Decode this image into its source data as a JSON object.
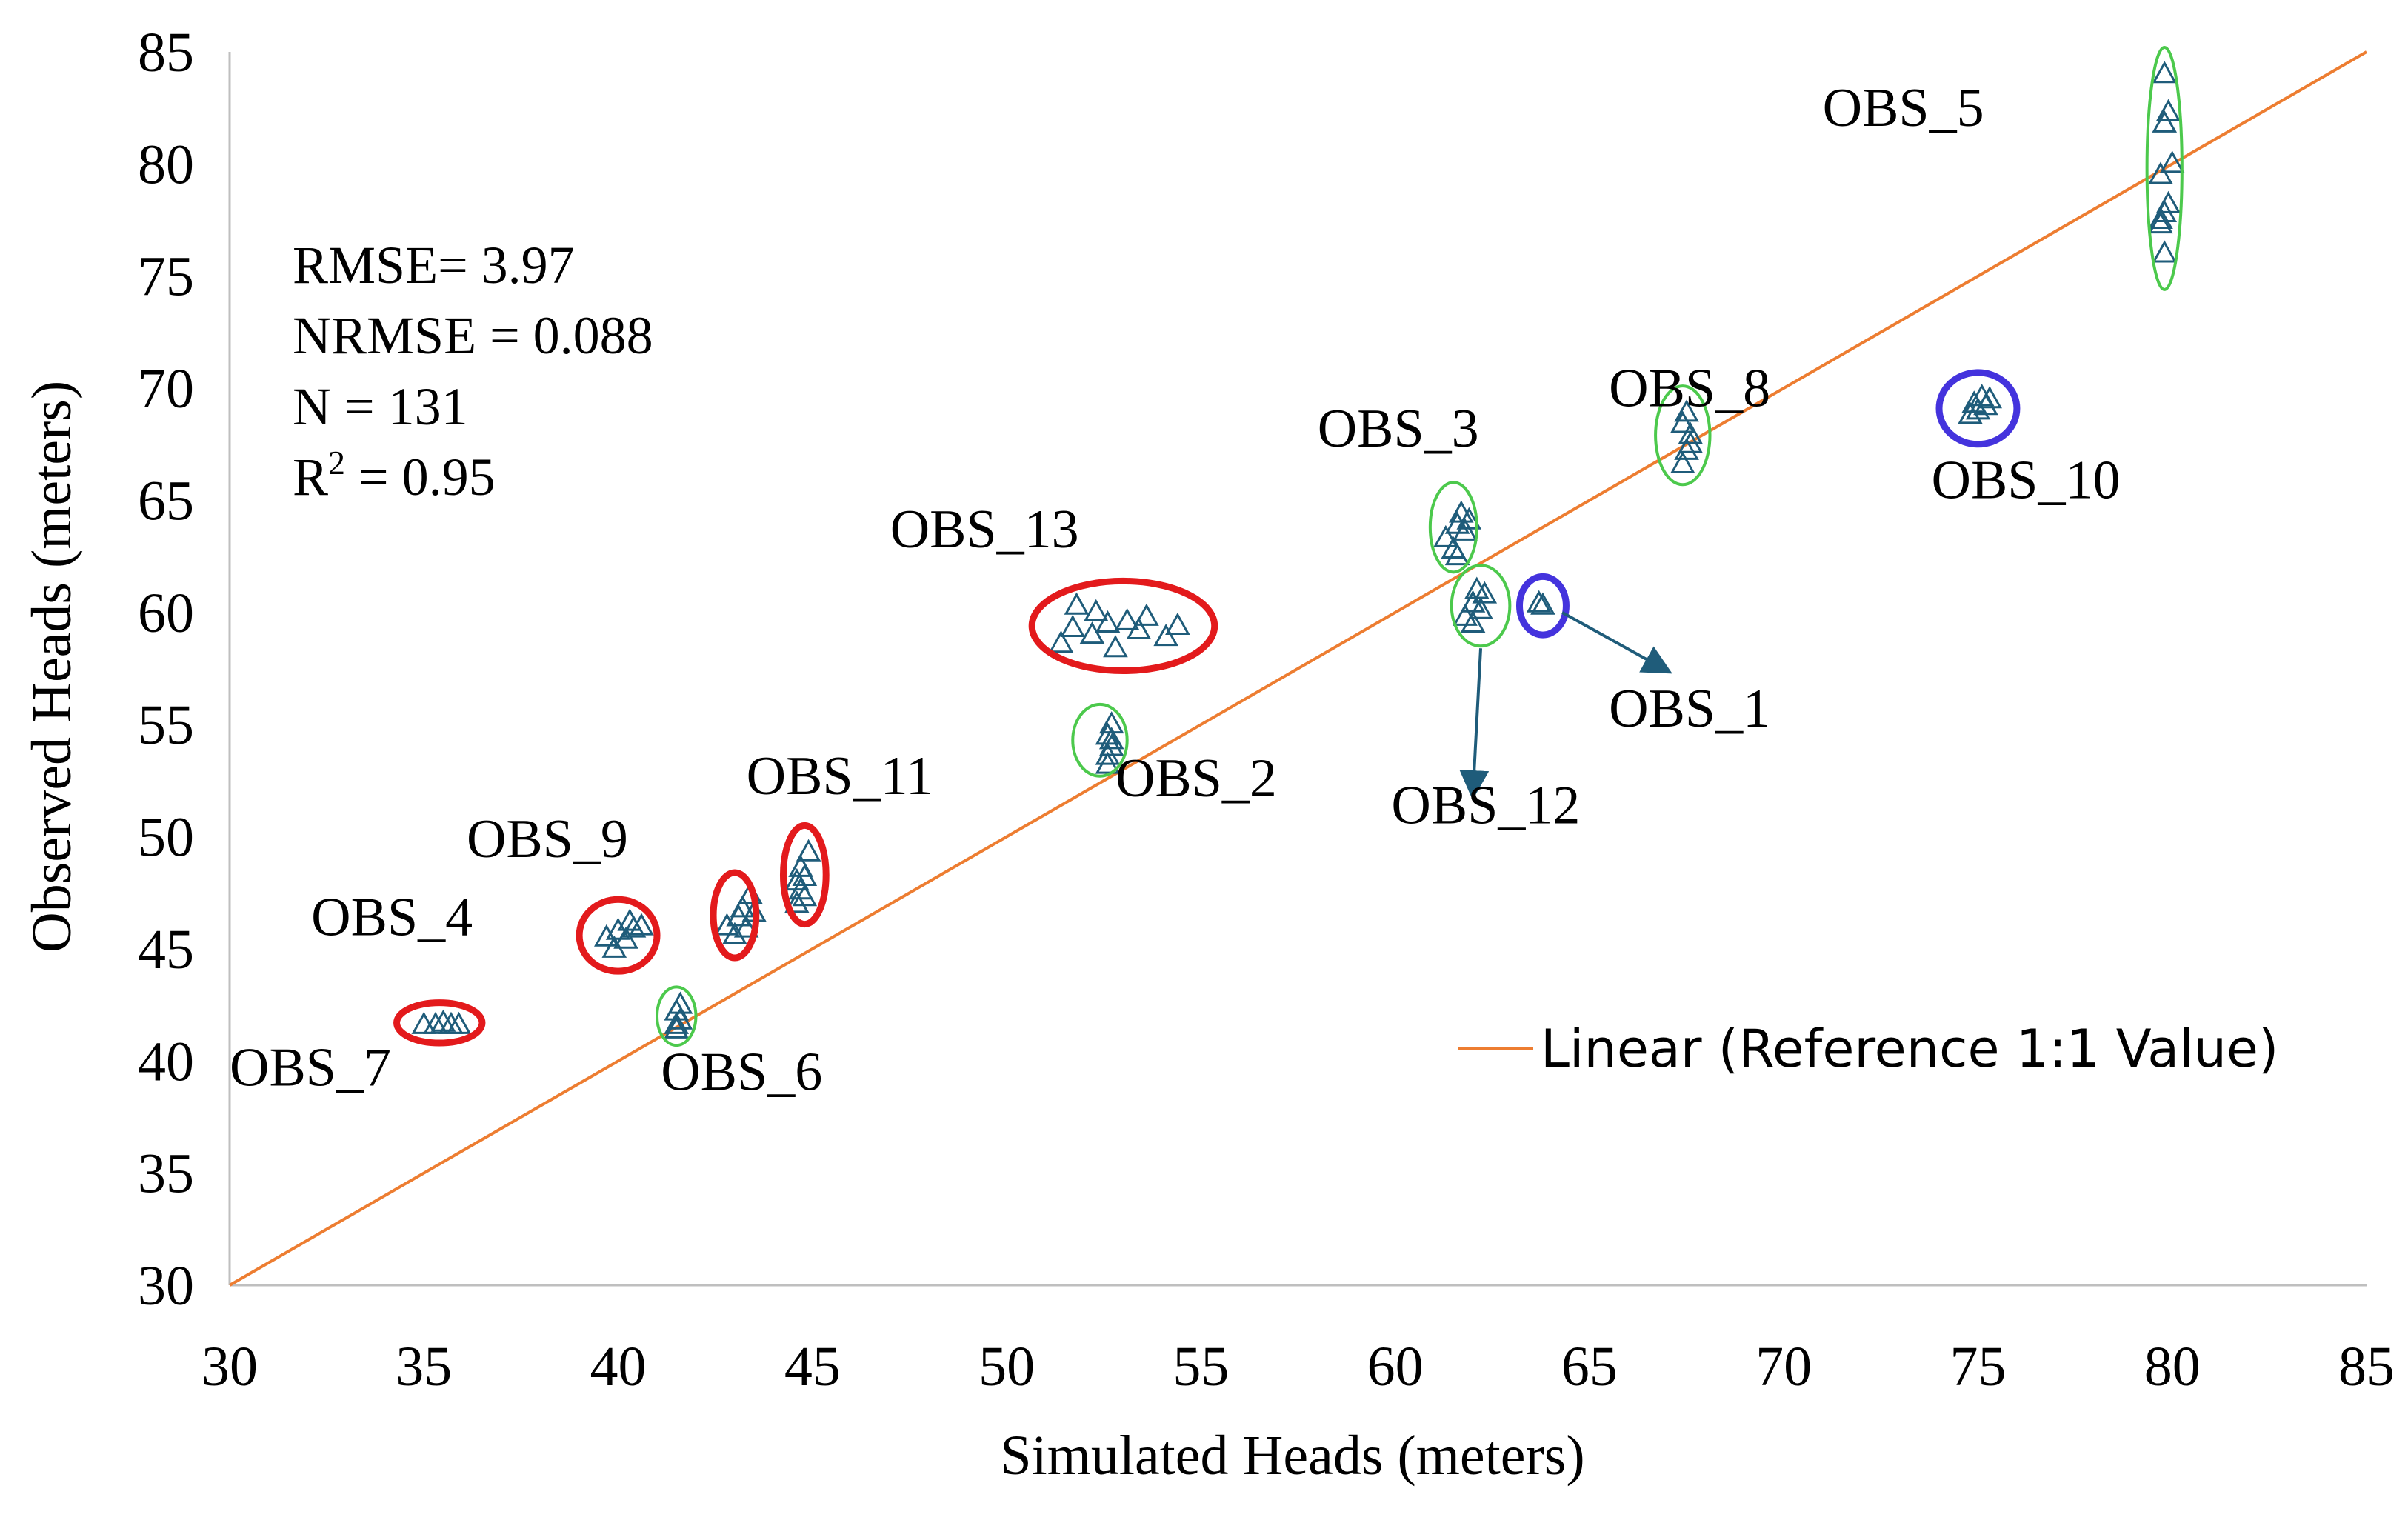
{
  "chart_data": {
    "type": "scatter",
    "xlabel": "Simulated Heads (meters)",
    "ylabel": "Observed Heads  (meters)",
    "xlim": [
      30,
      85
    ],
    "ylim": [
      30,
      85
    ],
    "xticks": [
      "30",
      "35",
      "40",
      "45",
      "50",
      "55",
      "60",
      "65",
      "70",
      "75",
      "80",
      "85"
    ],
    "yticks": [
      "30",
      "35",
      "40",
      "45",
      "50",
      "55",
      "60",
      "65",
      "70",
      "75",
      "80",
      "85"
    ],
    "grid": false,
    "legend": {
      "placement": "bottom-right",
      "label": "Linear (Reference 1:1 Value)"
    },
    "stats": {
      "rmse": "RMSE= 3.97",
      "nrmse": "NRMSE = 0.088",
      "n": "N = 131",
      "r2_prefix": "R",
      "r2_sup": "2",
      "r2_suffix": " = 0.95"
    },
    "reference_line": {
      "x": [
        30,
        85
      ],
      "y": [
        30,
        85
      ],
      "color": "#ed7d31"
    },
    "colors": {
      "marker": "#1f5c7a",
      "good_fit": "#4cc94c",
      "overestimated": "#e31a1c",
      "underestimated": "#4433dd",
      "reference": "#ed7d31"
    },
    "groups": [
      {
        "name": "OBS_7",
        "ring": "red",
        "points": [
          [
            35.0,
            41.6
          ],
          [
            35.3,
            41.6
          ],
          [
            35.5,
            41.7
          ],
          [
            35.7,
            41.6
          ],
          [
            35.9,
            41.6
          ]
        ],
        "ellipse": {
          "cx": 35.4,
          "cy": 41.7,
          "rx": 1.1,
          "ry": 0.9
        }
      },
      {
        "name": "OBS_4",
        "ring": "red",
        "points": [
          [
            39.7,
            45.5
          ],
          [
            39.9,
            45.0
          ],
          [
            40.0,
            45.8
          ],
          [
            40.2,
            45.4
          ],
          [
            40.4,
            45.9
          ],
          [
            40.6,
            46.0
          ],
          [
            40.3,
            46.2
          ]
        ],
        "ellipse": {
          "cx": 40.0,
          "cy": 45.6,
          "rx": 1.0,
          "ry": 1.6
        }
      },
      {
        "name": "OBS_9",
        "ring": "red",
        "points": [
          [
            42.8,
            46.0
          ],
          [
            43.0,
            45.6
          ],
          [
            43.2,
            46.8
          ],
          [
            43.4,
            47.4
          ],
          [
            43.1,
            46.4
          ],
          [
            43.3,
            45.9
          ],
          [
            43.5,
            46.6
          ]
        ],
        "ellipse": {
          "cx": 43.0,
          "cy": 46.5,
          "rx": 0.55,
          "ry": 1.9
        }
      },
      {
        "name": "OBS_11",
        "ring": "red",
        "points": [
          [
            44.6,
            47.0
          ],
          [
            44.7,
            47.6
          ],
          [
            44.8,
            48.2
          ],
          [
            44.7,
            48.6
          ],
          [
            44.9,
            49.3
          ],
          [
            44.8,
            47.3
          ],
          [
            44.6,
            48.0
          ]
        ],
        "ellipse": {
          "cx": 44.8,
          "cy": 48.3,
          "rx": 0.55,
          "ry": 2.2
        }
      },
      {
        "name": "OBS_6",
        "ring": "green",
        "points": [
          [
            41.5,
            41.4
          ],
          [
            41.6,
            41.8
          ],
          [
            41.5,
            42.2
          ],
          [
            41.6,
            42.5
          ],
          [
            41.5,
            41.6
          ]
        ],
        "ellipse": {
          "cx": 41.5,
          "cy": 42.0,
          "rx": 0.5,
          "ry": 1.3
        }
      },
      {
        "name": "OBS_13",
        "ring": "red",
        "points": [
          [
            51.4,
            58.6
          ],
          [
            51.7,
            59.3
          ],
          [
            51.8,
            60.3
          ],
          [
            52.2,
            59.0
          ],
          [
            52.3,
            60.0
          ],
          [
            52.6,
            59.5
          ],
          [
            52.8,
            58.4
          ],
          [
            53.1,
            59.6
          ],
          [
            53.4,
            59.2
          ],
          [
            53.6,
            59.8
          ],
          [
            54.1,
            58.9
          ],
          [
            54.4,
            59.4
          ]
        ],
        "ellipse": {
          "cx": 53.0,
          "cy": 59.4,
          "rx": 2.35,
          "ry": 2.0
        }
      },
      {
        "name": "OBS_2",
        "ring": "green",
        "points": [
          [
            52.6,
            53.6
          ],
          [
            52.7,
            54.0
          ],
          [
            52.6,
            54.5
          ],
          [
            52.7,
            55.0
          ],
          [
            52.6,
            53.2
          ],
          [
            52.7,
            54.3
          ]
        ],
        "ellipse": {
          "cx": 52.4,
          "cy": 54.3,
          "rx": 0.7,
          "ry": 1.6
        }
      },
      {
        "name": "OBS_3",
        "ring": "green",
        "points": [
          [
            61.3,
            63.3
          ],
          [
            61.5,
            62.8
          ],
          [
            61.6,
            63.9
          ],
          [
            61.7,
            64.4
          ],
          [
            61.8,
            63.6
          ],
          [
            61.9,
            64.1
          ],
          [
            61.6,
            62.5
          ]
        ],
        "ellipse": {
          "cx": 61.5,
          "cy": 63.8,
          "rx": 0.6,
          "ry": 2.0
        }
      },
      {
        "name": "OBS_12",
        "ring": "green",
        "points": [
          [
            61.8,
            59.8
          ],
          [
            62.0,
            60.4
          ],
          [
            62.1,
            61.0
          ],
          [
            62.3,
            60.8
          ],
          [
            62.0,
            59.5
          ],
          [
            62.2,
            60.1
          ]
        ],
        "ellipse": {
          "cx": 62.2,
          "cy": 60.3,
          "rx": 0.75,
          "ry": 1.8
        }
      },
      {
        "name": "OBS_1",
        "ring": "blue",
        "points": [
          [
            63.7,
            60.4
          ],
          [
            63.8,
            60.3
          ]
        ],
        "ellipse": {
          "cx": 63.8,
          "cy": 60.3,
          "rx": 0.6,
          "ry": 1.3
        }
      },
      {
        "name": "OBS_8",
        "ring": "green",
        "points": [
          [
            67.4,
            66.6
          ],
          [
            67.5,
            67.2
          ],
          [
            67.6,
            67.9
          ],
          [
            67.4,
            68.4
          ],
          [
            67.5,
            68.9
          ],
          [
            67.6,
            67.5
          ]
        ],
        "ellipse": {
          "cx": 67.4,
          "cy": 67.9,
          "rx": 0.7,
          "ry": 2.2
        }
      },
      {
        "name": "OBS_10",
        "ring": "blue",
        "points": [
          [
            74.8,
            68.8
          ],
          [
            74.9,
            69.3
          ],
          [
            75.0,
            69.0
          ],
          [
            75.1,
            69.6
          ],
          [
            75.2,
            69.2
          ],
          [
            75.3,
            69.5
          ]
        ],
        "ellipse": {
          "cx": 75.0,
          "cy": 69.1,
          "rx": 1.0,
          "ry": 1.6
        }
      },
      {
        "name": "OBS_5",
        "ring": "green",
        "points": [
          [
            79.8,
            76.0
          ],
          [
            79.7,
            77.3
          ],
          [
            79.8,
            77.8
          ],
          [
            79.9,
            78.2
          ],
          [
            79.7,
            79.5
          ],
          [
            80.0,
            80.0
          ],
          [
            79.8,
            81.8
          ],
          [
            79.9,
            82.3
          ],
          [
            79.8,
            84.0
          ],
          [
            79.7,
            77.5
          ]
        ],
        "ellipse": {
          "cx": 79.8,
          "cy": 79.8,
          "rx": 0.45,
          "ry": 5.4
        }
      }
    ],
    "labels": [
      {
        "group": "OBS_7",
        "text": "OBS_7",
        "x": 30.0,
        "y": 38.9,
        "anchor": "start"
      },
      {
        "group": "OBS_4",
        "text": "OBS_4",
        "x": 32.1,
        "y": 45.6,
        "anchor": "start"
      },
      {
        "group": "OBS_9",
        "text": "OBS_9",
        "x": 36.1,
        "y": 49.1,
        "anchor": "start"
      },
      {
        "group": "OBS_11",
        "text": "OBS_11",
        "x": 43.3,
        "y": 51.9,
        "anchor": "start"
      },
      {
        "group": "OBS_6",
        "text": "OBS_6",
        "x": 41.1,
        "y": 38.7,
        "anchor": "start"
      },
      {
        "group": "OBS_13",
        "text": "OBS_13",
        "x": 47.0,
        "y": 62.9,
        "anchor": "start"
      },
      {
        "group": "OBS_2",
        "text": "OBS_2",
        "x": 52.8,
        "y": 51.8,
        "anchor": "start"
      },
      {
        "group": "OBS_3",
        "text": "OBS_3",
        "x": 58.0,
        "y": 67.4,
        "anchor": "start"
      },
      {
        "group": "OBS_12",
        "text": "OBS_12",
        "x": 59.9,
        "y": 50.6,
        "anchor": "start"
      },
      {
        "group": "OBS_1",
        "text": "OBS_1",
        "x": 65.5,
        "y": 54.9,
        "anchor": "start"
      },
      {
        "group": "OBS_8",
        "text": "OBS_8",
        "x": 65.5,
        "y": 69.2,
        "anchor": "start"
      },
      {
        "group": "OBS_10",
        "text": "OBS_10",
        "x": 73.8,
        "y": 65.1,
        "anchor": "start"
      },
      {
        "group": "OBS_5",
        "text": "OBS_5",
        "x": 71.0,
        "y": 81.7,
        "anchor": "start"
      }
    ],
    "arrows": [
      {
        "group": "OBS_12",
        "from": [
          62.2,
          58.4
        ],
        "to": [
          62.0,
          51.9
        ]
      },
      {
        "group": "OBS_1",
        "from": [
          64.3,
          60.0
        ],
        "to": [
          67.0,
          57.4
        ]
      }
    ]
  }
}
